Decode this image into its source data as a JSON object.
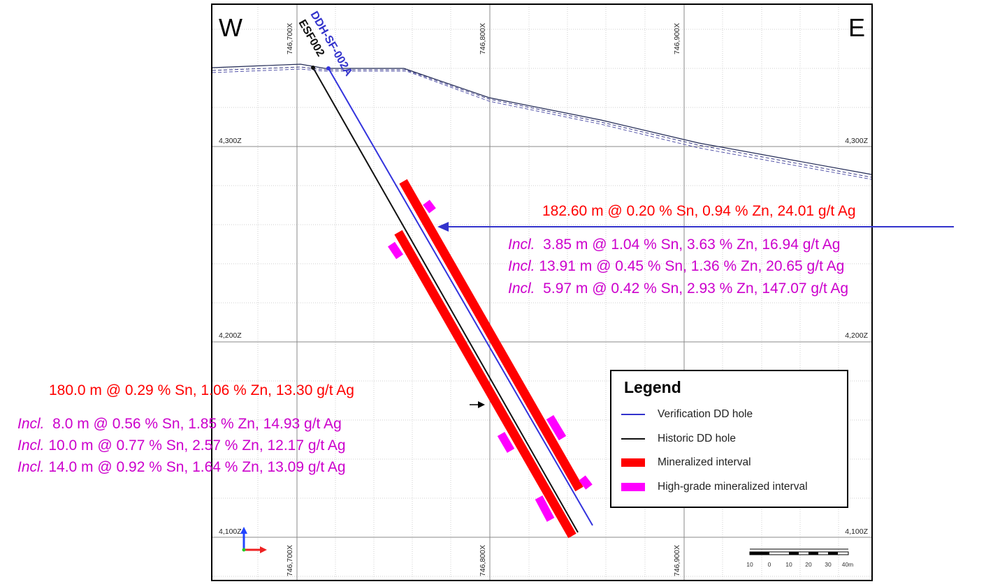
{
  "section": {
    "west_label": "W",
    "east_label": "E",
    "x_ticks": [
      "746,700X",
      "746,800X",
      "746,900X"
    ],
    "z_ticks": [
      "4,300Z",
      "4,200Z",
      "4,100Z"
    ]
  },
  "holes": {
    "verification": {
      "name": "DDH-SF-002A",
      "color": "#3333cc"
    },
    "historic": {
      "name": "ESF002",
      "color": "#111111"
    }
  },
  "annotations": {
    "verification": {
      "main": "182.60 m @ 0.20 % Sn, 0.94 % Zn, 24.01 g/t Ag",
      "includes": [
        {
          "prefix": "Incl.",
          "text": "  3.85 m @ 1.04 % Sn, 3.63 % Zn, 16.94 g/t Ag"
        },
        {
          "prefix": "Incl.",
          "text": " 13.91 m @ 0.45 % Sn, 1.36 % Zn, 20.65 g/t Ag"
        },
        {
          "prefix": "Incl.",
          "text": "  5.97 m @ 0.42 % Sn, 2.93 % Zn, 147.07 g/t Ag"
        }
      ]
    },
    "historic": {
      "main": "180.0 m @ 0.29 % Sn, 1.06 % Zn, 13.30 g/t Ag",
      "includes": [
        {
          "prefix": "Incl.",
          "text": "  8.0 m @ 0.56 % Sn, 1.85 % Zn, 14.93 g/t Ag"
        },
        {
          "prefix": "Incl.",
          "text": " 10.0 m @ 0.77 % Sn, 2.57 % Zn, 12.17 g/t Ag"
        },
        {
          "prefix": "Incl.",
          "text": " 14.0 m @ 0.92 % Sn, 1.64 % Zn, 13.09 g/t Ag"
        }
      ]
    }
  },
  "legend": {
    "title": "Legend",
    "items": [
      {
        "label": "Verification DD hole",
        "kind": "line",
        "color": "#3333cc"
      },
      {
        "label": "Historic DD hole",
        "kind": "line",
        "color": "#111111"
      },
      {
        "label": "Mineralized interval",
        "kind": "box",
        "color": "#ff0000"
      },
      {
        "label": "High-grade mineralized interval",
        "kind": "box",
        "color": "#ff00ff"
      }
    ]
  },
  "scale_bar": {
    "labels": [
      "10",
      "0",
      "10",
      "20",
      "30",
      "40m"
    ]
  },
  "colors": {
    "mineralized": "#ff0000",
    "high_grade": "#ff00ff",
    "main_text": "#ff0000",
    "include_text": "#cc00cc",
    "arrow": "#3333cc"
  }
}
